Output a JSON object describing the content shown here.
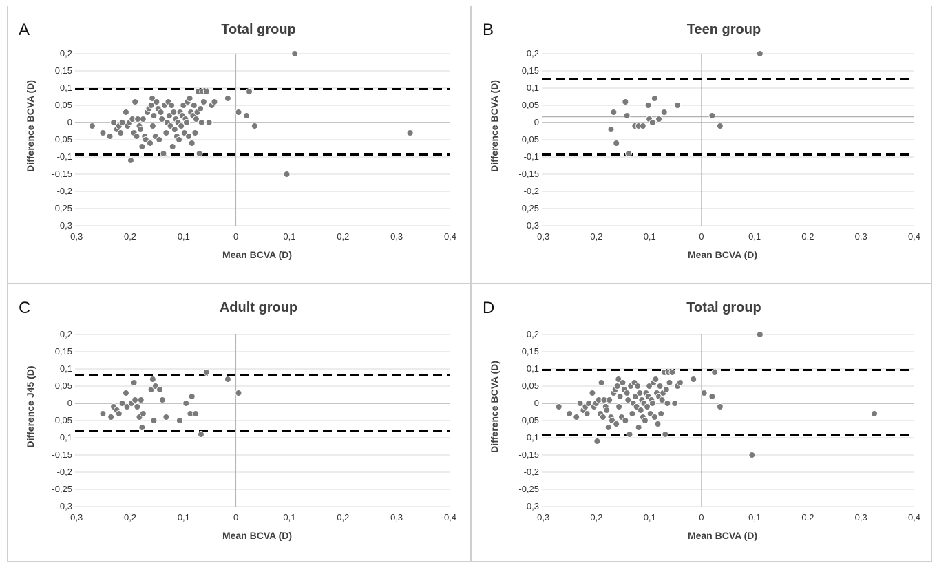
{
  "colors": {
    "point": "#7a7a7a",
    "point_stroke": "#ffffff",
    "grid": "#d9d9d9",
    "zero_line": "#b0b0b0",
    "limit_line": "#000000"
  },
  "chart_data": [
    {
      "type": "scatter",
      "panel_label": "A",
      "title": "Total group",
      "xlabel": "Mean BCVA (D)",
      "ylabel": "Difference BCVA (D)",
      "xlim": [
        -0.3,
        0.4
      ],
      "ylim": [
        -0.3,
        0.2
      ],
      "x_ticks": [
        "-0,3",
        "-0,2",
        "-0,1",
        "0",
        "0,1",
        "0,2",
        "0,3",
        "0,4"
      ],
      "y_ticks": [
        "0,2",
        "0,15",
        "0,1",
        "0,05",
        "0",
        "-0,05",
        "-0,1",
        "-0,15",
        "-0,2",
        "-0,25",
        "-0,3"
      ],
      "grid": "horizontal",
      "upper_limit": 0.097,
      "lower_limit": -0.093,
      "mean_line": 0,
      "points": [
        [
          -0.268,
          -0.01
        ],
        [
          -0.248,
          -0.03
        ],
        [
          -0.235,
          -0.04
        ],
        [
          -0.228,
          0.0
        ],
        [
          -0.222,
          -0.02
        ],
        [
          -0.218,
          -0.01
        ],
        [
          -0.215,
          -0.03
        ],
        [
          -0.212,
          0.0
        ],
        [
          -0.205,
          0.03
        ],
        [
          -0.202,
          -0.01
        ],
        [
          -0.198,
          0.0
        ],
        [
          -0.196,
          -0.11
        ],
        [
          -0.193,
          0.01
        ],
        [
          -0.19,
          -0.03
        ],
        [
          -0.188,
          0.06
        ],
        [
          -0.185,
          -0.04
        ],
        [
          -0.183,
          0.01
        ],
        [
          -0.18,
          -0.01
        ],
        [
          -0.178,
          -0.02
        ],
        [
          -0.175,
          -0.07
        ],
        [
          -0.173,
          0.01
        ],
        [
          -0.17,
          -0.04
        ],
        [
          -0.168,
          -0.05
        ],
        [
          -0.165,
          0.03
        ],
        [
          -0.162,
          0.04
        ],
        [
          -0.16,
          -0.06
        ],
        [
          -0.158,
          0.05
        ],
        [
          -0.156,
          0.07
        ],
        [
          -0.155,
          -0.01
        ],
        [
          -0.153,
          0.02
        ],
        [
          -0.15,
          -0.04
        ],
        [
          -0.148,
          0.06
        ],
        [
          -0.145,
          0.04
        ],
        [
          -0.143,
          -0.05
        ],
        [
          -0.14,
          0.03
        ],
        [
          -0.138,
          0.01
        ],
        [
          -0.135,
          -0.09
        ],
        [
          -0.133,
          0.05
        ],
        [
          -0.13,
          -0.03
        ],
        [
          -0.128,
          0.0
        ],
        [
          -0.126,
          0.06
        ],
        [
          -0.124,
          0.02
        ],
        [
          -0.122,
          -0.01
        ],
        [
          -0.12,
          0.05
        ],
        [
          -0.118,
          -0.07
        ],
        [
          -0.116,
          0.03
        ],
        [
          -0.114,
          -0.02
        ],
        [
          -0.112,
          0.01
        ],
        [
          -0.11,
          -0.04
        ],
        [
          -0.108,
          0.0
        ],
        [
          -0.106,
          -0.05
        ],
        [
          -0.104,
          0.03
        ],
        [
          -0.102,
          -0.01
        ],
        [
          -0.1,
          0.02
        ],
        [
          -0.098,
          0.05
        ],
        [
          -0.096,
          -0.03
        ],
        [
          -0.094,
          0.01
        ],
        [
          -0.092,
          0.0
        ],
        [
          -0.09,
          0.06
        ],
        [
          -0.088,
          -0.04
        ],
        [
          -0.086,
          0.07
        ],
        [
          -0.084,
          0.03
        ],
        [
          -0.082,
          -0.06
        ],
        [
          -0.08,
          0.02
        ],
        [
          -0.078,
          0.05
        ],
        [
          -0.076,
          -0.03
        ],
        [
          -0.074,
          0.01
        ],
        [
          -0.072,
          0.03
        ],
        [
          -0.07,
          0.09
        ],
        [
          -0.068,
          -0.09
        ],
        [
          -0.066,
          0.04
        ],
        [
          -0.064,
          0.0
        ],
        [
          -0.062,
          0.09
        ],
        [
          -0.06,
          0.06
        ],
        [
          -0.055,
          0.09
        ],
        [
          -0.05,
          0.0
        ],
        [
          -0.045,
          0.05
        ],
        [
          -0.04,
          0.06
        ],
        [
          -0.015,
          0.07
        ],
        [
          0.005,
          0.03
        ],
        [
          0.02,
          0.02
        ],
        [
          0.025,
          0.09
        ],
        [
          0.035,
          -0.01
        ],
        [
          0.095,
          -0.15
        ],
        [
          0.11,
          0.2
        ],
        [
          0.325,
          -0.03
        ]
      ]
    },
    {
      "type": "scatter",
      "panel_label": "B",
      "title": "Teen group",
      "xlabel": "Mean BCVA (D)",
      "ylabel": "Difference BCVA (D)",
      "xlim": [
        -0.3,
        0.4
      ],
      "ylim": [
        -0.3,
        0.2
      ],
      "x_ticks": [
        "-0,3",
        "-0,2",
        "-0,1",
        "0",
        "0,1",
        "0,2",
        "0,3",
        "0,4"
      ],
      "y_ticks": [
        "0,2",
        "0,15",
        "0,1",
        "0,05",
        "0",
        "-0,05",
        "-0,1",
        "-0,15",
        "-0,2",
        "-0,25",
        "-0,3"
      ],
      "grid": "horizontal",
      "upper_limit": 0.127,
      "lower_limit": -0.093,
      "mean_line": 0.017,
      "points": [
        [
          -0.17,
          -0.02
        ],
        [
          -0.165,
          0.03
        ],
        [
          -0.16,
          -0.06
        ],
        [
          -0.143,
          0.06
        ],
        [
          -0.14,
          0.02
        ],
        [
          -0.137,
          -0.09
        ],
        [
          -0.125,
          -0.01
        ],
        [
          -0.118,
          -0.01
        ],
        [
          -0.11,
          -0.01
        ],
        [
          -0.1,
          0.05
        ],
        [
          -0.098,
          0.01
        ],
        [
          -0.092,
          0.0
        ],
        [
          -0.088,
          0.07
        ],
        [
          -0.08,
          0.01
        ],
        [
          -0.07,
          0.03
        ],
        [
          -0.045,
          0.05
        ],
        [
          0.02,
          0.02
        ],
        [
          0.035,
          -0.01
        ],
        [
          0.11,
          0.2
        ]
      ]
    },
    {
      "type": "scatter",
      "panel_label": "C",
      "title": "Adult group",
      "xlabel": "Mean BCVA (D)",
      "ylabel": "Difference J45 (D)",
      "xlim": [
        -0.3,
        0.4
      ],
      "ylim": [
        -0.3,
        0.2
      ],
      "x_ticks": [
        "-0,3",
        "-0,2",
        "-0,1",
        "0",
        "0,1",
        "0,2",
        "0,3",
        "0,4"
      ],
      "y_ticks": [
        "0,2",
        "0,15",
        "0,1",
        "0,05",
        "0",
        "-0,05",
        "-0,1",
        "-0,15",
        "-0,2",
        "-0,25",
        "-0,3"
      ],
      "grid": "horizontal",
      "upper_limit": 0.081,
      "lower_limit": -0.081,
      "mean_line": 0,
      "points": [
        [
          -0.248,
          -0.03
        ],
        [
          -0.233,
          -0.04
        ],
        [
          -0.228,
          -0.01
        ],
        [
          -0.222,
          -0.02
        ],
        [
          -0.218,
          -0.03
        ],
        [
          -0.212,
          0.0
        ],
        [
          -0.205,
          0.03
        ],
        [
          -0.203,
          -0.01
        ],
        [
          -0.195,
          0.0
        ],
        [
          -0.19,
          0.06
        ],
        [
          -0.188,
          0.01
        ],
        [
          -0.184,
          -0.01
        ],
        [
          -0.18,
          -0.04
        ],
        [
          -0.177,
          0.01
        ],
        [
          -0.175,
          -0.07
        ],
        [
          -0.173,
          -0.03
        ],
        [
          -0.158,
          0.04
        ],
        [
          -0.155,
          0.07
        ],
        [
          -0.153,
          -0.05
        ],
        [
          -0.15,
          0.05
        ],
        [
          -0.142,
          0.04
        ],
        [
          -0.137,
          0.01
        ],
        [
          -0.13,
          -0.04
        ],
        [
          -0.105,
          -0.05
        ],
        [
          -0.093,
          0.0
        ],
        [
          -0.085,
          -0.03
        ],
        [
          -0.082,
          0.02
        ],
        [
          -0.075,
          -0.03
        ],
        [
          -0.065,
          -0.09
        ],
        [
          -0.055,
          0.09
        ],
        [
          -0.015,
          0.07
        ],
        [
          0.005,
          0.03
        ]
      ]
    },
    {
      "type": "scatter",
      "panel_label": "D",
      "title": "Total group",
      "xlabel": "Mean BCVA (D)",
      "ylabel": "Difference BCVA (D)",
      "xlim": [
        -0.3,
        0.4
      ],
      "ylim": [
        -0.3,
        0.2
      ],
      "x_ticks": [
        "-0,3",
        "-0,2",
        "-0,1",
        "0",
        "0,1",
        "0,2",
        "0,3",
        "0,4"
      ],
      "y_ticks": [
        "0,2",
        "0,15",
        "0,1",
        "0,05",
        "0",
        "-0,05",
        "-0,1",
        "-0,15",
        "-0,2",
        "-0,25",
        "-0,3"
      ],
      "grid": "horizontal",
      "upper_limit": 0.097,
      "lower_limit": -0.093,
      "mean_line": 0,
      "points": [
        [
          -0.268,
          -0.01
        ],
        [
          -0.248,
          -0.03
        ],
        [
          -0.235,
          -0.04
        ],
        [
          -0.228,
          0.0
        ],
        [
          -0.222,
          -0.02
        ],
        [
          -0.218,
          -0.01
        ],
        [
          -0.215,
          -0.03
        ],
        [
          -0.212,
          0.0
        ],
        [
          -0.205,
          0.03
        ],
        [
          -0.202,
          -0.01
        ],
        [
          -0.198,
          0.0
        ],
        [
          -0.196,
          -0.11
        ],
        [
          -0.193,
          0.01
        ],
        [
          -0.19,
          -0.03
        ],
        [
          -0.188,
          0.06
        ],
        [
          -0.185,
          -0.04
        ],
        [
          -0.183,
          0.01
        ],
        [
          -0.18,
          -0.01
        ],
        [
          -0.178,
          -0.02
        ],
        [
          -0.175,
          -0.07
        ],
        [
          -0.173,
          0.01
        ],
        [
          -0.17,
          -0.04
        ],
        [
          -0.168,
          -0.05
        ],
        [
          -0.165,
          0.03
        ],
        [
          -0.162,
          0.04
        ],
        [
          -0.16,
          -0.06
        ],
        [
          -0.158,
          0.05
        ],
        [
          -0.156,
          0.07
        ],
        [
          -0.155,
          -0.01
        ],
        [
          -0.153,
          0.02
        ],
        [
          -0.15,
          -0.04
        ],
        [
          -0.148,
          0.06
        ],
        [
          -0.145,
          0.04
        ],
        [
          -0.143,
          -0.05
        ],
        [
          -0.14,
          0.03
        ],
        [
          -0.138,
          0.01
        ],
        [
          -0.135,
          -0.09
        ],
        [
          -0.133,
          0.05
        ],
        [
          -0.13,
          -0.03
        ],
        [
          -0.128,
          0.0
        ],
        [
          -0.126,
          0.06
        ],
        [
          -0.124,
          0.02
        ],
        [
          -0.122,
          -0.01
        ],
        [
          -0.12,
          0.05
        ],
        [
          -0.118,
          -0.07
        ],
        [
          -0.116,
          0.03
        ],
        [
          -0.114,
          -0.02
        ],
        [
          -0.112,
          0.01
        ],
        [
          -0.11,
          -0.04
        ],
        [
          -0.108,
          0.0
        ],
        [
          -0.106,
          -0.05
        ],
        [
          -0.104,
          0.03
        ],
        [
          -0.102,
          -0.01
        ],
        [
          -0.1,
          0.02
        ],
        [
          -0.098,
          0.05
        ],
        [
          -0.096,
          -0.03
        ],
        [
          -0.094,
          0.01
        ],
        [
          -0.092,
          0.0
        ],
        [
          -0.09,
          0.06
        ],
        [
          -0.088,
          -0.04
        ],
        [
          -0.086,
          0.07
        ],
        [
          -0.084,
          0.03
        ],
        [
          -0.082,
          -0.06
        ],
        [
          -0.08,
          0.02
        ],
        [
          -0.078,
          0.05
        ],
        [
          -0.076,
          -0.03
        ],
        [
          -0.074,
          0.01
        ],
        [
          -0.072,
          0.03
        ],
        [
          -0.07,
          0.09
        ],
        [
          -0.068,
          -0.09
        ],
        [
          -0.066,
          0.04
        ],
        [
          -0.064,
          0.0
        ],
        [
          -0.062,
          0.09
        ],
        [
          -0.06,
          0.06
        ],
        [
          -0.055,
          0.09
        ],
        [
          -0.05,
          0.0
        ],
        [
          -0.045,
          0.05
        ],
        [
          -0.04,
          0.06
        ],
        [
          -0.015,
          0.07
        ],
        [
          0.005,
          0.03
        ],
        [
          0.02,
          0.02
        ],
        [
          0.025,
          0.09
        ],
        [
          0.035,
          -0.01
        ],
        [
          0.095,
          -0.15
        ],
        [
          0.11,
          0.2
        ],
        [
          0.325,
          -0.03
        ]
      ]
    }
  ]
}
